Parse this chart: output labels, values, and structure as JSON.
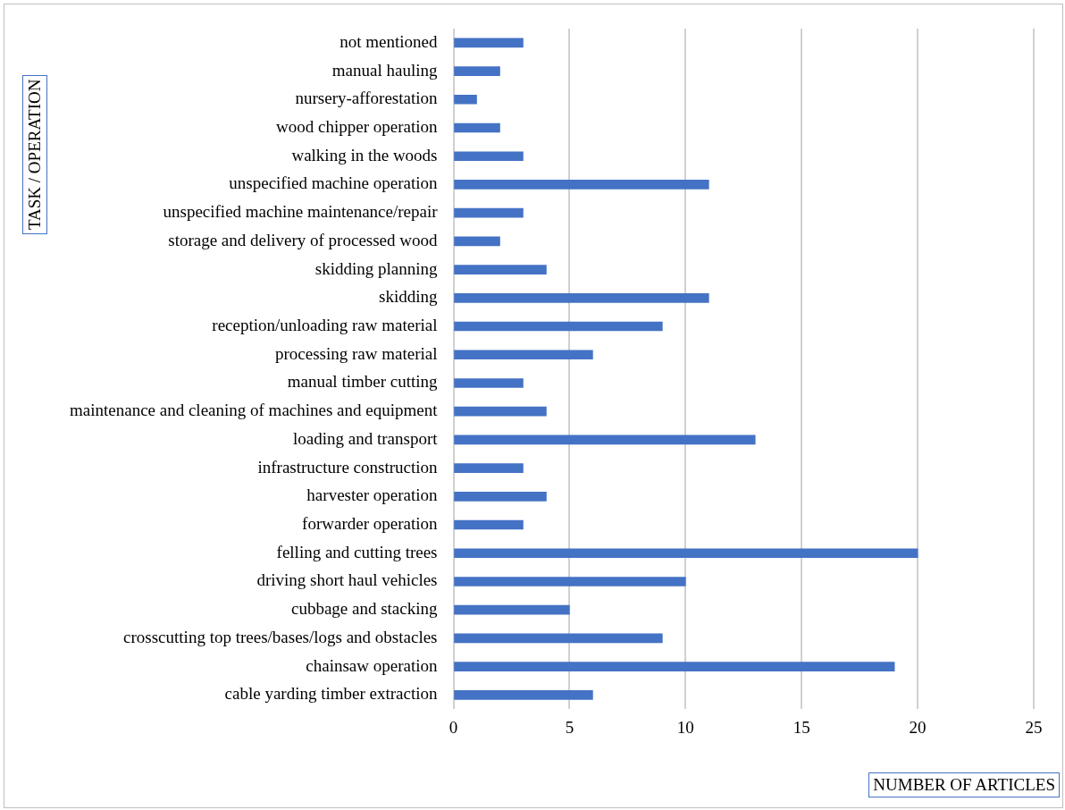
{
  "chart_data": {
    "type": "bar",
    "orientation": "horizontal",
    "xlabel": "NUMBER OF ARTICLES",
    "ylabel": "TASK / OPERATION",
    "categories": [
      "not mentioned",
      "manual hauling",
      "nursery-afforestation",
      "wood chipper operation",
      "walking in the woods",
      "unspecified machine operation",
      "unspecified machine maintenance/repair",
      "storage and delivery of processed wood",
      "skidding planning",
      "skidding",
      "reception/unloading raw material",
      "processing raw material",
      "manual timber cutting",
      "maintenance and cleaning of machines and equipment",
      "loading and transport",
      "infrastructure construction",
      "harvester operation",
      "forwarder operation",
      "felling and cutting trees",
      "driving short haul vehicles",
      "cubbage and stacking",
      "crosscutting top trees/bases/logs and obstacles",
      "chainsaw operation",
      "cable yarding timber extraction"
    ],
    "values": [
      3,
      2,
      1,
      2,
      3,
      11,
      3,
      2,
      4,
      11,
      9,
      6,
      3,
      4,
      13,
      3,
      4,
      3,
      20,
      10,
      5,
      9,
      19,
      6
    ],
    "color": "#4472c4",
    "xlim": [
      0,
      25
    ],
    "xticks": [
      0,
      5,
      10,
      15,
      20,
      25
    ],
    "grid": "x",
    "legend": false
  }
}
